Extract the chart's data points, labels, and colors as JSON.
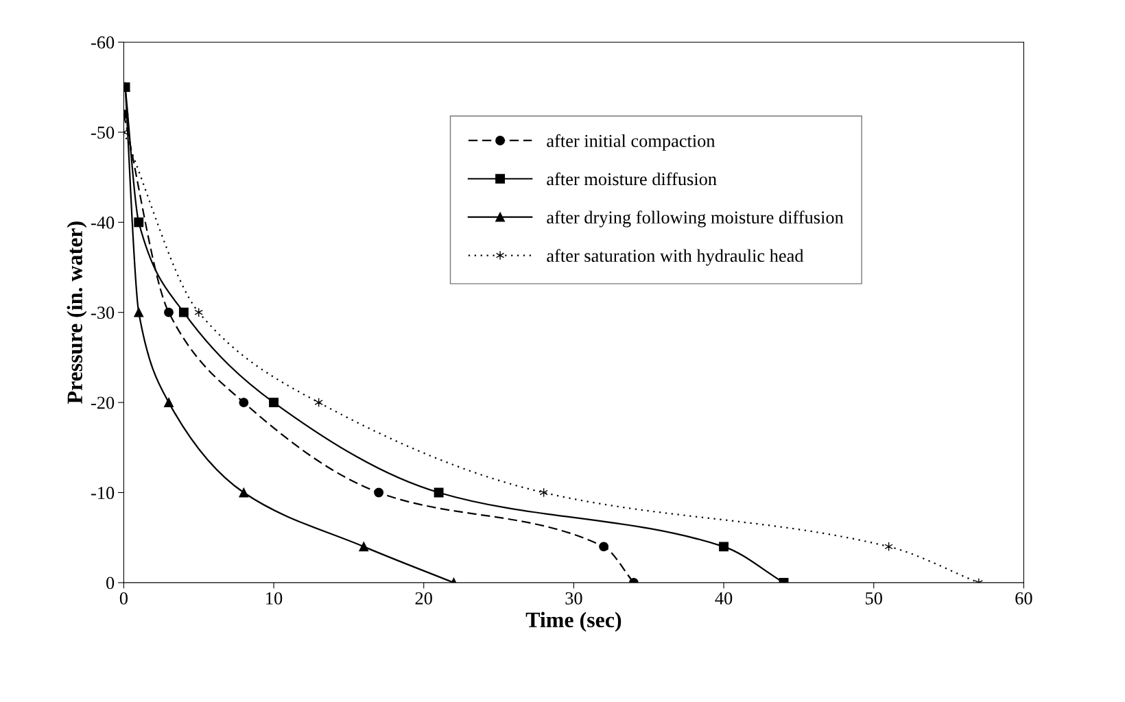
{
  "chart_data": {
    "type": "line",
    "xlabel": "Time (sec)",
    "ylabel": "Pressure (in. water)",
    "xlim": [
      0,
      60
    ],
    "xticks": [
      0,
      10,
      20,
      30,
      40,
      50,
      60
    ],
    "ylim": [
      0,
      -60
    ],
    "yticks": [
      0,
      -10,
      -20,
      -30,
      -40,
      -50,
      -60
    ],
    "grid": false,
    "legend": "top right",
    "series": [
      {
        "name": "after initial compaction",
        "color": "#000000",
        "marker": "circle",
        "line_style": "dashed",
        "x": [
          0,
          3,
          8,
          17,
          32,
          34
        ],
        "values": [
          -52,
          -30,
          -20,
          -10,
          -4,
          0
        ]
      },
      {
        "name": "after moisture diffusion",
        "color": "#000000",
        "marker": "square",
        "line_style": "solid",
        "x": [
          0.1,
          1,
          4,
          10,
          21,
          40,
          44
        ],
        "values": [
          -55,
          -40,
          -30,
          -20,
          -10,
          -4,
          0
        ]
      },
      {
        "name": "after drying following moisture diffusion",
        "color": "#000000",
        "marker": "triangle",
        "line_style": "solid",
        "x": [
          0.1,
          1,
          3,
          8,
          16,
          22
        ],
        "values": [
          -55,
          -30,
          -20,
          -10,
          -4,
          0
        ]
      },
      {
        "name": "after saturation with hydraulic head",
        "color": "#000000",
        "marker": "cross",
        "line_style": "dotted",
        "x": [
          0,
          5,
          13,
          28,
          51,
          57
        ],
        "values": [
          -50,
          -30,
          -20,
          -10,
          -4,
          0
        ]
      }
    ]
  }
}
